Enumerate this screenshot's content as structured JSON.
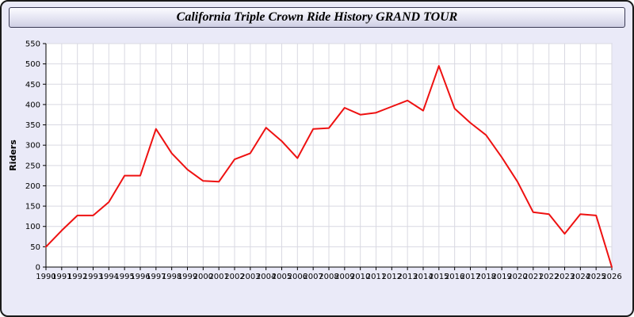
{
  "page": {
    "title": "California Triple Crown Ride History GRAND TOUR"
  },
  "chart_data": {
    "type": "line",
    "title": "California Triple Crown Ride History GRAND TOUR",
    "xlabel": "",
    "ylabel": "Riders",
    "ylim": [
      0,
      550
    ],
    "ytick_step": 50,
    "grid": true,
    "legend_position": "none",
    "line_color": "#ee1111",
    "x": [
      1990,
      1991,
      1992,
      1993,
      1994,
      1995,
      1996,
      1997,
      1998,
      1999,
      2000,
      2001,
      2002,
      2003,
      2004,
      2005,
      2006,
      2007,
      2008,
      2009,
      2010,
      2011,
      2012,
      2013,
      2014,
      2015,
      2016,
      2017,
      2018,
      2019,
      2020,
      2021,
      2022,
      2023,
      2024,
      2025,
      2026
    ],
    "series": [
      {
        "name": "Riders",
        "values": [
          50,
          90,
          127,
          127,
          160,
          225,
          225,
          340,
          280,
          240,
          212,
          210,
          265,
          280,
          343,
          310,
          268,
          340,
          342,
          392,
          375,
          380,
          395,
          410,
          385,
          495,
          390,
          355,
          325,
          270,
          210,
          135,
          130,
          82,
          130,
          127,
          0
        ]
      }
    ]
  },
  "colors": {
    "page_bg": "#eaeaf8",
    "plot_bg": "#ffffff",
    "grid": "#d9d9e2",
    "axis": "#000000",
    "line": "#ee1111"
  }
}
